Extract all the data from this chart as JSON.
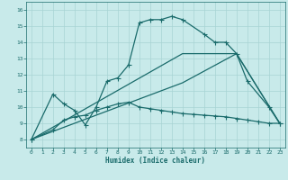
{
  "xlabel": "Humidex (Indice chaleur)",
  "bg_color": "#c8eaea",
  "grid_color": "#a8d4d4",
  "line_color": "#1a6b6b",
  "xlim": [
    -0.5,
    23.5
  ],
  "ylim": [
    7.5,
    16.5
  ],
  "xticks": [
    0,
    1,
    2,
    3,
    4,
    5,
    6,
    7,
    8,
    9,
    10,
    11,
    12,
    13,
    14,
    15,
    16,
    17,
    18,
    19,
    20,
    21,
    22,
    23
  ],
  "yticks": [
    8,
    9,
    10,
    11,
    12,
    13,
    14,
    15,
    16
  ],
  "curve1_x": [
    0,
    2,
    3,
    4,
    5,
    6,
    7,
    8,
    9,
    10,
    11,
    12,
    13,
    14,
    16,
    17,
    18,
    19,
    20,
    22,
    23
  ],
  "curve1_y": [
    8.0,
    10.8,
    10.2,
    9.8,
    8.9,
    10.0,
    11.6,
    11.8,
    12.6,
    15.2,
    15.4,
    15.4,
    15.6,
    15.4,
    14.5,
    14.0,
    14.0,
    13.3,
    11.6,
    10.0,
    9.0
  ],
  "curve2_x": [
    0,
    2,
    3,
    4,
    5,
    6,
    7,
    8,
    9,
    10,
    11,
    12,
    13,
    14,
    15,
    16,
    17,
    18,
    19,
    20,
    21,
    22,
    23
  ],
  "curve2_y": [
    8.0,
    8.6,
    9.2,
    9.4,
    9.5,
    9.8,
    10.0,
    10.2,
    10.3,
    10.0,
    9.9,
    9.8,
    9.7,
    9.6,
    9.55,
    9.5,
    9.45,
    9.4,
    9.3,
    9.2,
    9.1,
    9.0,
    9.0
  ],
  "line2_x": [
    0,
    14,
    19,
    23
  ],
  "line2_y": [
    8.0,
    11.5,
    13.3,
    9.0
  ],
  "line3_x": [
    0,
    14,
    19,
    23
  ],
  "line3_y": [
    8.0,
    13.3,
    13.3,
    9.0
  ],
  "markersize": 2.0,
  "linewidth": 0.9
}
